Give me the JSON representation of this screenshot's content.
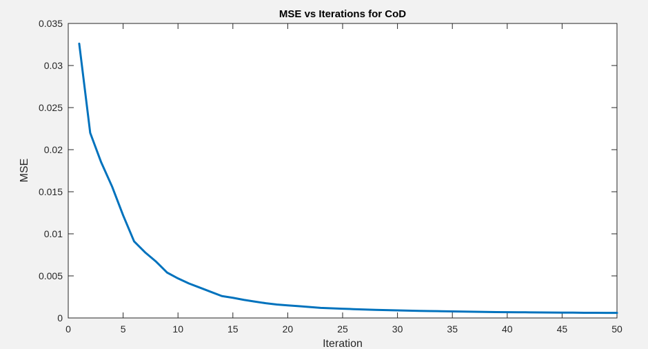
{
  "chart_data": {
    "type": "line",
    "title": "MSE vs Iterations for CoD",
    "xlabel": "Iteration",
    "ylabel": "MSE",
    "xlim": [
      0,
      50
    ],
    "ylim": [
      0,
      0.035
    ],
    "xticks": [
      0,
      5,
      10,
      15,
      20,
      25,
      30,
      35,
      40,
      45,
      50
    ],
    "xtick_labels": [
      "0",
      "5",
      "10",
      "15",
      "20",
      "25",
      "30",
      "35",
      "40",
      "45",
      "50"
    ],
    "yticks": [
      0,
      0.005,
      0.01,
      0.015,
      0.02,
      0.025,
      0.03,
      0.035
    ],
    "ytick_labels": [
      "0",
      "0.005",
      "0.01",
      "0.015",
      "0.02",
      "0.025",
      "0.03",
      "0.035"
    ],
    "grid": false,
    "line_color": "#0072bd",
    "series": [
      {
        "x": [
          1,
          2,
          3,
          4,
          5,
          6,
          7,
          8,
          9,
          10,
          11,
          12,
          13,
          14,
          15,
          16,
          17,
          18,
          19,
          20,
          21,
          22,
          23,
          24,
          25,
          26,
          27,
          28,
          29,
          30,
          31,
          32,
          33,
          34,
          35,
          36,
          37,
          38,
          39,
          40,
          41,
          42,
          43,
          44,
          45,
          46,
          47,
          48,
          49,
          50
        ],
        "values": [
          0.0326,
          0.022,
          0.0185,
          0.0156,
          0.0122,
          0.0091,
          0.0078,
          0.0067,
          0.0054,
          0.0047,
          0.0041,
          0.0036,
          0.0031,
          0.0026,
          0.0024,
          0.00215,
          0.00195,
          0.00175,
          0.0016,
          0.0015,
          0.0014,
          0.0013,
          0.0012,
          0.00115,
          0.0011,
          0.00105,
          0.001,
          0.00096,
          0.00093,
          0.0009,
          0.00087,
          0.00084,
          0.00082,
          0.0008,
          0.00078,
          0.00076,
          0.00074,
          0.00072,
          0.0007,
          0.00069,
          0.00068,
          0.00067,
          0.00066,
          0.00065,
          0.00064,
          0.00063,
          0.00062,
          0.00061,
          0.0006,
          0.0006
        ]
      }
    ]
  }
}
